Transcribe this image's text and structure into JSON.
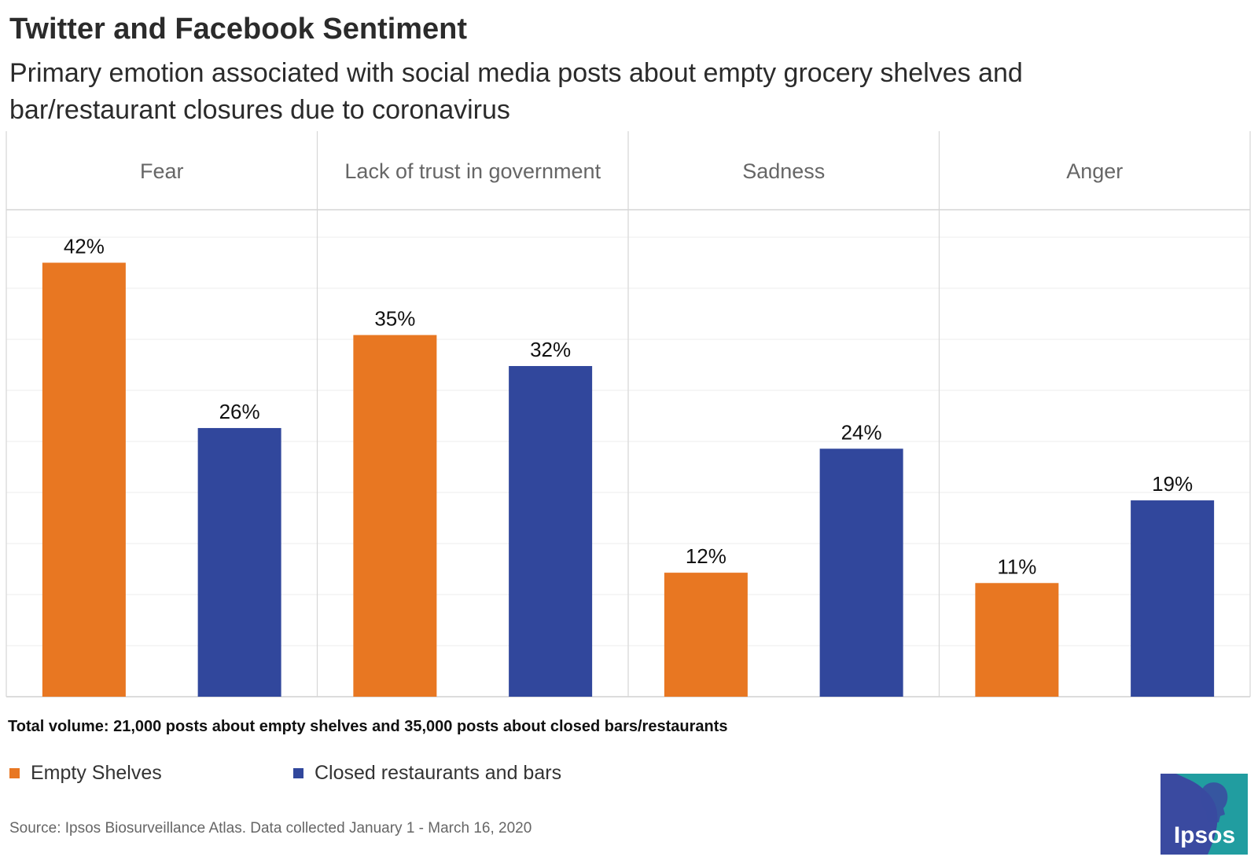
{
  "title": "Twitter and Facebook Sentiment",
  "subtitle": "Primary emotion associated with social media posts about empty grocery shelves and bar/restaurant closures due to coronavirus",
  "chart_data": {
    "type": "bar",
    "categories": [
      "Fear",
      "Lack of trust in government",
      "Sadness",
      "Anger"
    ],
    "series": [
      {
        "name": "Empty Shelves",
        "values": [
          42,
          35,
          12,
          11
        ],
        "labels": [
          "42%",
          "35%",
          "12%",
          "11%"
        ],
        "color": "#E87722"
      },
      {
        "name": "Closed restaurants and bars",
        "values": [
          26,
          32,
          24,
          19
        ],
        "labels": [
          "26%",
          "32%",
          "24%",
          "19%"
        ],
        "color": "#31479C"
      }
    ],
    "ylim": [
      0,
      45
    ],
    "grid": true,
    "legend": "bottom-left"
  },
  "note": "Total volume: 21,000 posts about empty shelves and 35,000 posts about closed bars/restaurants",
  "source": "Source: Ipsos Biosurveillance Atlas. Data collected January 1 - March 16, 2020",
  "logo": {
    "text": "Ipsos",
    "bg_color": "#1FA6A0",
    "box_color": "#3A4AA0"
  }
}
